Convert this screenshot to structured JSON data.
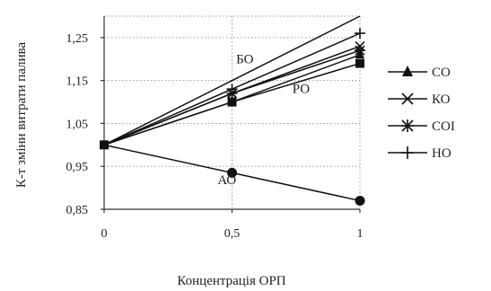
{
  "chart_data": {
    "type": "line",
    "xlabel": "Концентрація ОРП",
    "ylabel": "К-т зміни витрати палива",
    "x": [
      0,
      0.5,
      1
    ],
    "x_tick_labels": [
      "0",
      "0,5",
      "1"
    ],
    "xlim": [
      0,
      1
    ],
    "ylim": [
      0.85,
      1.3
    ],
    "y_ticks": [
      0.85,
      0.95,
      1.05,
      1.15,
      1.25
    ],
    "y_tick_labels": [
      "0,85",
      "0,95",
      "1,05",
      "1,15",
      "1,25"
    ],
    "grid": true,
    "legend_position": "right",
    "series": [
      {
        "name": "СО",
        "marker": "triangle",
        "values": [
          1.0,
          1.1,
          1.21
        ],
        "legend": true
      },
      {
        "name": "КО",
        "marker": "x",
        "values": [
          1.0,
          1.12,
          1.23
        ],
        "legend": true
      },
      {
        "name": "СОІ",
        "marker": "asterisk",
        "values": [
          1.0,
          1.12,
          1.22
        ],
        "legend": true
      },
      {
        "name": "НО",
        "marker": "plus",
        "values": [
          1.0,
          1.13,
          1.26
        ],
        "legend": true
      },
      {
        "name": "БО",
        "marker": "none",
        "values": [
          1.0,
          1.15,
          1.3
        ],
        "legend": false
      },
      {
        "name": "РО",
        "marker": "square",
        "values": [
          1.0,
          1.1,
          1.19
        ],
        "legend": false
      },
      {
        "name": "АО",
        "marker": "circle",
        "values": [
          1.0,
          0.935,
          0.87
        ],
        "legend": false
      }
    ],
    "annotations": [
      {
        "text": "БО",
        "series": "БО"
      },
      {
        "text": "РО",
        "series": "РО"
      },
      {
        "text": "АО",
        "series": "АО"
      }
    ]
  }
}
